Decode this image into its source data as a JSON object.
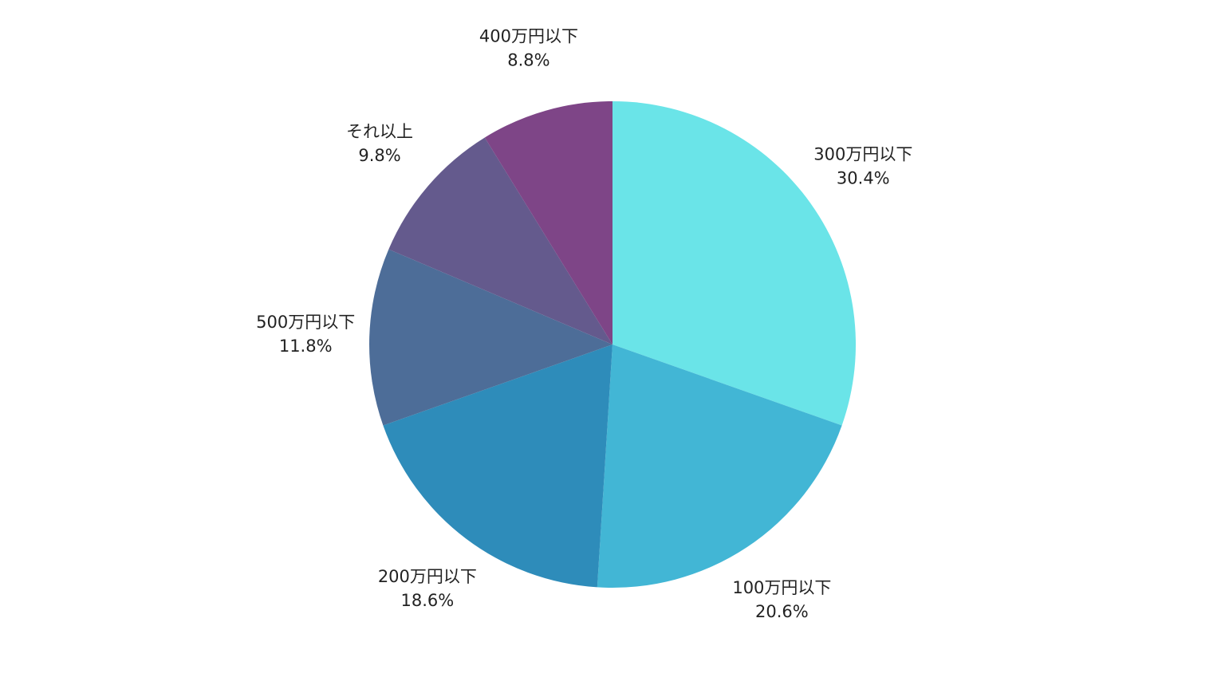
{
  "chart_data": {
    "type": "pie",
    "categories": [
      "300万円以下",
      "100万円以下",
      "200万円以下",
      "500万円以下",
      "それ以上",
      "400万円以下"
    ],
    "values": [
      30.4,
      20.6,
      18.6,
      11.8,
      9.8,
      8.8
    ],
    "value_labels": [
      "30.4%",
      "20.6%",
      "18.6%",
      "11.8%",
      "9.8%",
      "8.8%"
    ],
    "colors": [
      "#6ae4e8",
      "#42b6d5",
      "#2e8cba",
      "#4d6d98",
      "#645a8d",
      "#7e4587"
    ]
  }
}
